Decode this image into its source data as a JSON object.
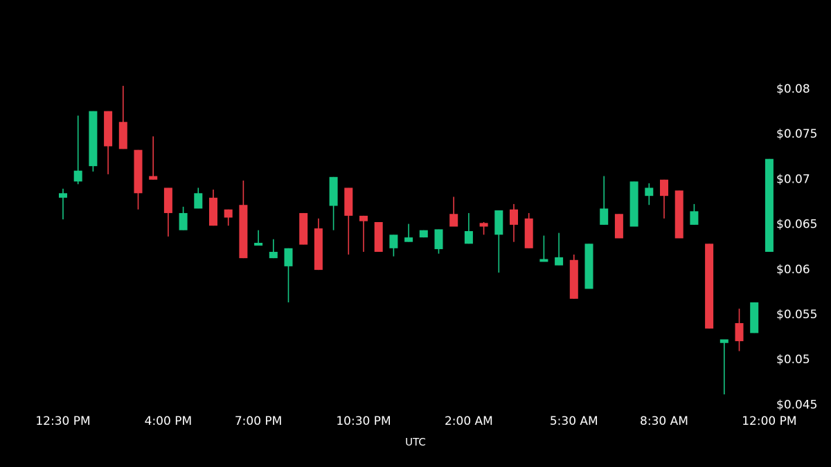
{
  "chart_data": {
    "type": "candlestick",
    "xlabel": "UTC",
    "ylabel": "",
    "ylim": [
      0.045,
      0.083
    ],
    "x_ticks": [
      "12:30 PM",
      "4:00 PM",
      "7:00 PM",
      "10:30 PM",
      "2:00 AM",
      "5:30 AM",
      "8:30 AM",
      "12:00 PM"
    ],
    "y_ticks": [
      "$0.08",
      "$0.075",
      "$0.07",
      "$0.065",
      "$0.06",
      "$0.055",
      "$0.05",
      "$0.045"
    ],
    "y_tick_values": [
      0.08,
      0.075,
      0.07,
      0.065,
      0.06,
      0.055,
      0.05,
      0.045
    ],
    "up_color": "#16c784",
    "down_color": "#ea3943",
    "interval": "30m",
    "candles": [
      {
        "time": "12:30 PM",
        "open": 0.0679,
        "high": 0.0689,
        "low": 0.0655,
        "close": 0.0684
      },
      {
        "time": "1:00 PM",
        "open": 0.0697,
        "high": 0.077,
        "low": 0.0694,
        "close": 0.0709
      },
      {
        "time": "1:30 PM",
        "open": 0.0714,
        "high": 0.0775,
        "low": 0.0708,
        "close": 0.0775
      },
      {
        "time": "2:00 PM",
        "open": 0.0775,
        "high": 0.0775,
        "low": 0.0705,
        "close": 0.0736
      },
      {
        "time": "2:30 PM",
        "open": 0.0763,
        "high": 0.0803,
        "low": 0.0733,
        "close": 0.0733
      },
      {
        "time": "3:00 PM",
        "open": 0.0732,
        "high": 0.0732,
        "low": 0.0666,
        "close": 0.0684
      },
      {
        "time": "3:30 PM",
        "open": 0.0703,
        "high": 0.0747,
        "low": 0.0699,
        "close": 0.0699
      },
      {
        "time": "4:00 PM",
        "open": 0.069,
        "high": 0.069,
        "low": 0.0636,
        "close": 0.0662
      },
      {
        "time": "4:30 PM",
        "open": 0.0643,
        "high": 0.0669,
        "low": 0.0643,
        "close": 0.0662
      },
      {
        "time": "5:00 PM",
        "open": 0.0667,
        "high": 0.069,
        "low": 0.0667,
        "close": 0.0684
      },
      {
        "time": "5:30 PM",
        "open": 0.0679,
        "high": 0.0688,
        "low": 0.0648,
        "close": 0.0648
      },
      {
        "time": "6:00 PM",
        "open": 0.0666,
        "high": 0.0666,
        "low": 0.0648,
        "close": 0.0657
      },
      {
        "time": "6:30 PM",
        "open": 0.0671,
        "high": 0.0698,
        "low": 0.0612,
        "close": 0.0612
      },
      {
        "time": "7:00 PM",
        "open": 0.0627,
        "high": 0.0643,
        "low": 0.0627,
        "close": 0.0629
      },
      {
        "time": "7:30 PM",
        "open": 0.0612,
        "high": 0.0633,
        "low": 0.0612,
        "close": 0.0619
      },
      {
        "time": "8:00 PM",
        "open": 0.0603,
        "high": 0.0623,
        "low": 0.0563,
        "close": 0.0623
      },
      {
        "time": "8:30 PM",
        "open": 0.0662,
        "high": 0.0662,
        "low": 0.0627,
        "close": 0.0627
      },
      {
        "time": "9:00 PM",
        "open": 0.0645,
        "high": 0.0656,
        "low": 0.0599,
        "close": 0.0599
      },
      {
        "time": "9:30 PM",
        "open": 0.067,
        "high": 0.0702,
        "low": 0.0643,
        "close": 0.0702
      },
      {
        "time": "10:00 PM",
        "open": 0.069,
        "high": 0.069,
        "low": 0.0616,
        "close": 0.0659
      },
      {
        "time": "10:30 PM",
        "open": 0.0659,
        "high": 0.0659,
        "low": 0.0619,
        "close": 0.0653
      },
      {
        "time": "11:00 PM",
        "open": 0.0652,
        "high": 0.0652,
        "low": 0.0619,
        "close": 0.0619
      },
      {
        "time": "11:30 PM",
        "open": 0.0623,
        "high": 0.0638,
        "low": 0.0614,
        "close": 0.0638
      },
      {
        "time": "12:00 AM",
        "open": 0.063,
        "high": 0.065,
        "low": 0.063,
        "close": 0.0635
      },
      {
        "time": "12:30 AM",
        "open": 0.0635,
        "high": 0.0643,
        "low": 0.0635,
        "close": 0.0643
      },
      {
        "time": "1:00 AM",
        "open": 0.0622,
        "high": 0.0644,
        "low": 0.0617,
        "close": 0.0644
      },
      {
        "time": "1:30 AM",
        "open": 0.0661,
        "high": 0.068,
        "low": 0.0647,
        "close": 0.0647
      },
      {
        "time": "2:00 AM",
        "open": 0.0628,
        "high": 0.0662,
        "low": 0.0628,
        "close": 0.0642
      },
      {
        "time": "2:30 AM",
        "open": 0.0651,
        "high": 0.0652,
        "low": 0.0638,
        "close": 0.0647
      },
      {
        "time": "3:00 AM",
        "open": 0.0638,
        "high": 0.0665,
        "low": 0.0596,
        "close": 0.0665
      },
      {
        "time": "3:30 AM",
        "open": 0.0666,
        "high": 0.0672,
        "low": 0.063,
        "close": 0.0649
      },
      {
        "time": "4:00 AM",
        "open": 0.0656,
        "high": 0.0662,
        "low": 0.0623,
        "close": 0.0623
      },
      {
        "time": "4:30 AM",
        "open": 0.0608,
        "high": 0.0637,
        "low": 0.0608,
        "close": 0.0611
      },
      {
        "time": "5:00 AM",
        "open": 0.0604,
        "high": 0.064,
        "low": 0.0604,
        "close": 0.0613
      },
      {
        "time": "5:30 AM",
        "open": 0.061,
        "high": 0.0616,
        "low": 0.0567,
        "close": 0.0567
      },
      {
        "time": "6:00 AM",
        "open": 0.0578,
        "high": 0.0628,
        "low": 0.0578,
        "close": 0.0628
      },
      {
        "time": "6:30 AM",
        "open": 0.0649,
        "high": 0.0703,
        "low": 0.0649,
        "close": 0.0667
      },
      {
        "time": "7:00 AM",
        "open": 0.0661,
        "high": 0.0661,
        "low": 0.0634,
        "close": 0.0634
      },
      {
        "time": "7:30 AM",
        "open": 0.0647,
        "high": 0.0697,
        "low": 0.0647,
        "close": 0.0697
      },
      {
        "time": "8:00 AM",
        "open": 0.0681,
        "high": 0.0695,
        "low": 0.0671,
        "close": 0.069
      },
      {
        "time": "8:30 AM",
        "open": 0.0699,
        "high": 0.0699,
        "low": 0.0656,
        "close": 0.0681
      },
      {
        "time": "9:00 AM",
        "open": 0.0687,
        "high": 0.0687,
        "low": 0.0634,
        "close": 0.0634
      },
      {
        "time": "9:30 AM",
        "open": 0.0649,
        "high": 0.0672,
        "low": 0.0649,
        "close": 0.0664
      },
      {
        "time": "10:00 AM",
        "open": 0.0628,
        "high": 0.0628,
        "low": 0.0534,
        "close": 0.0534
      },
      {
        "time": "10:30 AM",
        "open": 0.0518,
        "high": 0.0522,
        "low": 0.0461,
        "close": 0.0522
      },
      {
        "time": "11:00 AM",
        "open": 0.054,
        "high": 0.0556,
        "low": 0.0509,
        "close": 0.052
      },
      {
        "time": "11:30 AM",
        "open": 0.0529,
        "high": 0.0563,
        "low": 0.0529,
        "close": 0.0563
      },
      {
        "time": "12:00 PM",
        "open": 0.0619,
        "high": 0.0722,
        "low": 0.0619,
        "close": 0.0722
      }
    ]
  }
}
